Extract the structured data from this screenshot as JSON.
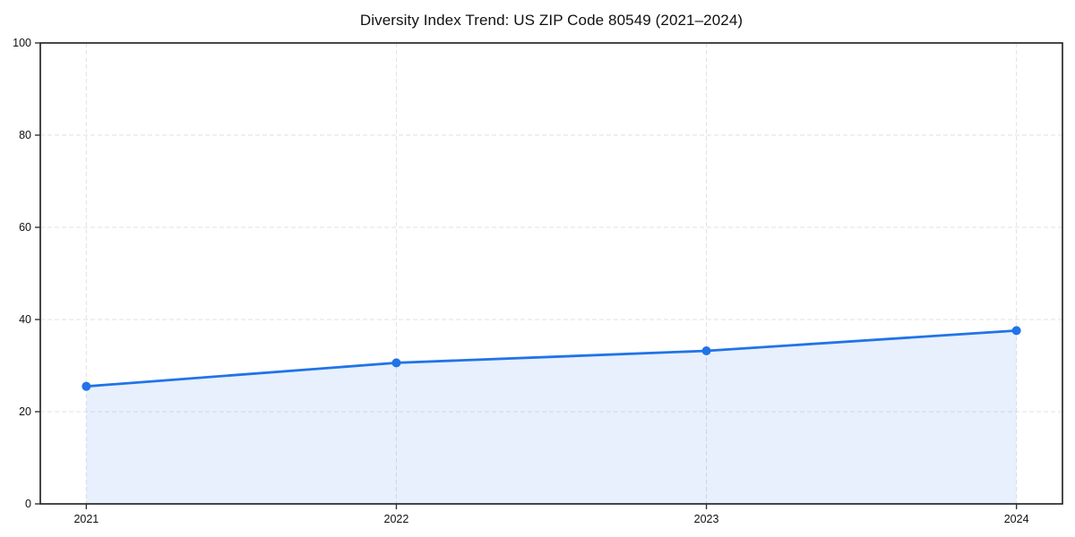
{
  "chart_data": {
    "type": "area",
    "title": "Diversity Index Trend: US ZIP Code 80549 (2021–2024)",
    "categories": [
      "2021",
      "2022",
      "2023",
      "2024"
    ],
    "series": [
      {
        "name": "Diversity Index",
        "values": [
          25.5,
          30.6,
          33.2,
          37.6
        ]
      }
    ],
    "xlabel": "",
    "ylabel": "",
    "ylim": [
      0,
      100
    ],
    "yticks": [
      0,
      20,
      40,
      60,
      80,
      100
    ],
    "grid": "dashed-both",
    "legend_position": "none",
    "colors": {
      "line": "#2173e8",
      "marker": "#2173e8",
      "fill": "rgba(33, 115, 232, 0.11)",
      "grid": "#e2e2e2",
      "spine": "#1a1a1a",
      "tick": "#333333",
      "text": "#111111",
      "background": "#ffffff"
    }
  }
}
